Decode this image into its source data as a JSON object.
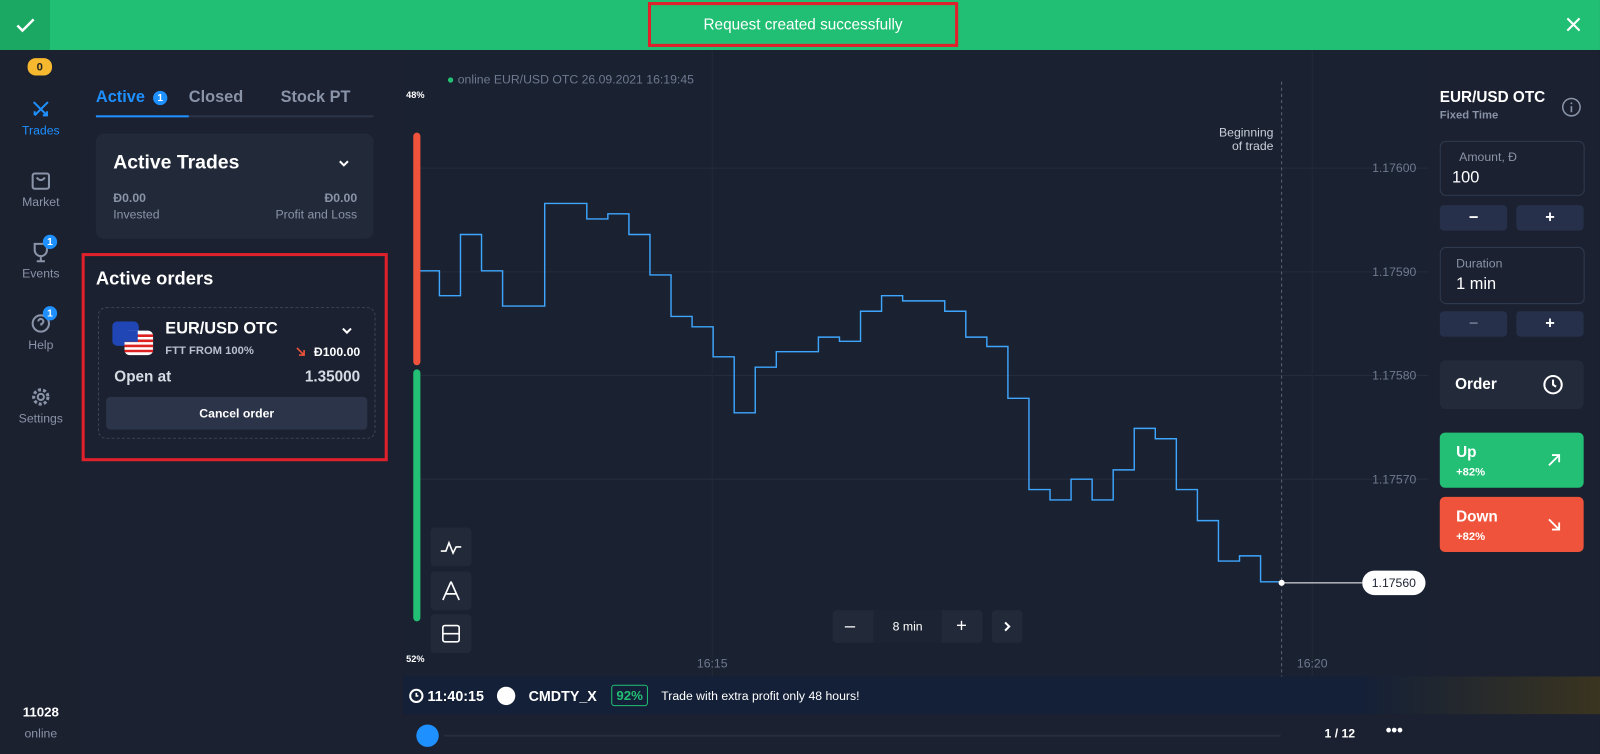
{
  "toast": {
    "message": "Request created successfully"
  },
  "sidebar": {
    "balance_badge": "0",
    "items": [
      {
        "label": "Trades"
      },
      {
        "label": "Market"
      },
      {
        "label": "Events",
        "badge": "1"
      },
      {
        "label": "Help",
        "badge": "1"
      },
      {
        "label": "Settings"
      }
    ],
    "online_count": "11028",
    "online_label": "online"
  },
  "trades_panel": {
    "tabs": [
      {
        "label": "Active",
        "badge": "1"
      },
      {
        "label": "Closed"
      },
      {
        "label": "Stock PT"
      }
    ],
    "active_trades": {
      "title": "Active Trades",
      "invested": "Đ0.00",
      "invested_label": "Invested",
      "pnl": "Đ0.00",
      "pnl_label": "Profit and Loss"
    },
    "active_orders": {
      "title": "Active orders",
      "asset": "EUR/USD OTC",
      "ftt": "FTT FROM 100%",
      "amount": "Đ100.00",
      "open_at_label": "Open at",
      "open_at": "1.35000",
      "cancel": "Cancel order"
    }
  },
  "chart_header": {
    "status": "online EUR/USD OTC  26.09.2021 16:19:45"
  },
  "sentiment": {
    "sell": {
      "value": 48,
      "label": "48%"
    },
    "buy": {
      "value": 52,
      "label": "52%"
    }
  },
  "chart_data": {
    "type": "line",
    "annotation": "Beginning\nof trade",
    "x_labels": [
      "16:15",
      "16:20"
    ],
    "series": [
      {
        "name": "EUR/USD OTC",
        "color": "#3ea6ff",
        "values": [
          1.175901,
          1.175877,
          1.175936,
          1.175901,
          1.175867,
          1.175867,
          1.175966,
          1.175966,
          1.175951,
          1.175956,
          1.175936,
          1.175897,
          1.175857,
          1.175847,
          1.175818,
          1.175764,
          1.175808,
          1.175823,
          1.175823,
          1.175837,
          1.175833,
          1.175862,
          1.175877,
          1.175872,
          1.175872,
          1.175862,
          1.175837,
          1.175828,
          1.175778,
          1.17569,
          1.17568,
          1.1757,
          1.17568,
          1.175709,
          1.175749,
          1.175739,
          1.17569,
          1.17566,
          1.175621,
          1.175626,
          1.175601,
          1.1756
        ]
      }
    ],
    "ylim": [
      1.17555,
      1.17605
    ],
    "yticks": [
      {
        "value": 1.176,
        "label": "1.17600"
      },
      {
        "value": 1.1759,
        "label": "1.17590"
      },
      {
        "value": 1.1758,
        "label": "1.17580"
      },
      {
        "value": 1.1757,
        "label": "1.17570"
      }
    ],
    "current_price": {
      "value": 1.1756,
      "label": "1.17560"
    },
    "grid": true
  },
  "zoom": {
    "label": "8 min"
  },
  "order_panel": {
    "asset": "EUR/USD OTC",
    "mode": "Fixed Time",
    "amount_label": "Amount, Đ",
    "amount": "100",
    "duration_label": "Duration",
    "duration": "1 min",
    "order": "Order",
    "up": "Up",
    "up_payout": "+82%",
    "down": "Down",
    "down_payout": "+82%"
  },
  "promo": {
    "timer": "11:40:15",
    "asset": "CMDTY_X",
    "payout": "92%",
    "message": "Trade with extra profit only 48 hours!",
    "page": "1 / 12"
  }
}
